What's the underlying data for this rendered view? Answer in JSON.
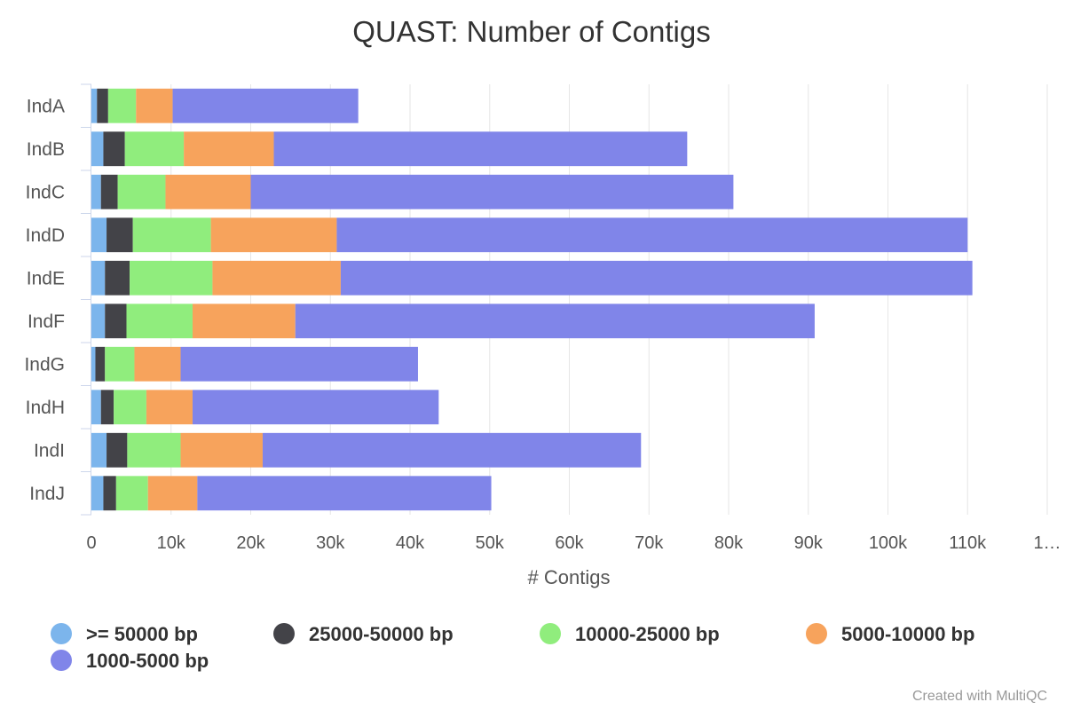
{
  "chart_data": {
    "type": "bar",
    "orientation": "horizontal",
    "stacked": true,
    "title": "QUAST: Number of Contigs",
    "xlabel": "# Contigs",
    "ylabel": "",
    "xlim": [
      0,
      120000
    ],
    "x_tick_labels": [
      "0",
      "10k",
      "20k",
      "30k",
      "40k",
      "50k",
      "60k",
      "70k",
      "80k",
      "90k",
      "100k",
      "110k",
      "1…"
    ],
    "grid": true,
    "legend_position": "bottom",
    "categories": [
      "IndA",
      "IndB",
      "IndC",
      "IndD",
      "IndE",
      "IndF",
      "IndG",
      "IndH",
      "IndI",
      "IndJ"
    ],
    "series": [
      {
        "name": ">= 50000 bp",
        "color": "#7cb5ec",
        "values": [
          700,
          1500,
          1200,
          1900,
          1700,
          1700,
          500,
          1200,
          1900,
          1500
        ]
      },
      {
        "name": "25000-50000 bp",
        "color": "#434348",
        "values": [
          1400,
          2700,
          2100,
          3300,
          3100,
          2700,
          1200,
          1600,
          2600,
          1600
        ]
      },
      {
        "name": "10000-25000 bp",
        "color": "#90ed7d",
        "values": [
          3500,
          7400,
          6000,
          9800,
          10400,
          8300,
          3700,
          4100,
          6700,
          4000
        ]
      },
      {
        "name": "5000-10000 bp",
        "color": "#f7a35c",
        "values": [
          4600,
          11300,
          10700,
          15800,
          16100,
          12900,
          5800,
          5800,
          10300,
          6200
        ]
      },
      {
        "name": "1000-5000 bp",
        "color": "#8085e9",
        "values": [
          23300,
          51900,
          60600,
          79200,
          79300,
          65200,
          29800,
          30900,
          47500,
          36900
        ]
      }
    ],
    "credit": "Created with MultiQC"
  }
}
